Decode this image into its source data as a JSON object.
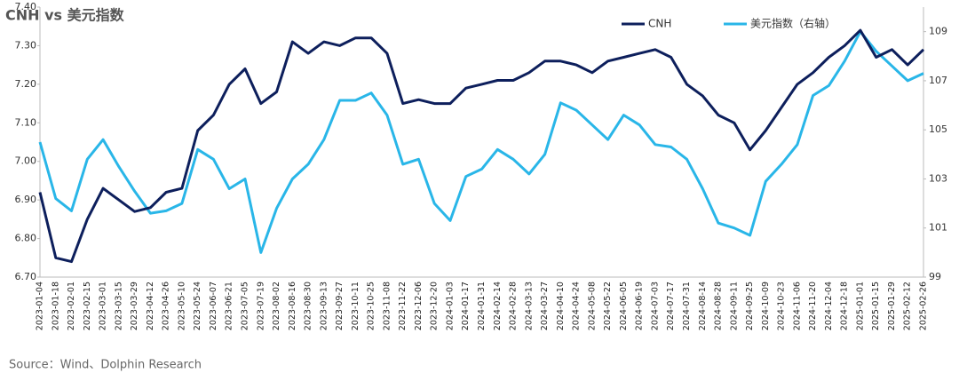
{
  "chart_data": {
    "type": "line",
    "title": "CNH vs 美元指数",
    "source": "Source：Wind、Dolphin Research",
    "categories": [
      "2023-01-04",
      "2023-01-18",
      "2023-02-01",
      "2023-02-15",
      "2023-03-01",
      "2023-03-15",
      "2023-03-29",
      "2023-04-12",
      "2023-04-26",
      "2023-05-10",
      "2023-05-24",
      "2023-06-07",
      "2023-06-21",
      "2023-07-05",
      "2023-07-19",
      "2023-08-02",
      "2023-08-16",
      "2023-08-30",
      "2023-09-13",
      "2023-09-27",
      "2023-10-11",
      "2023-10-25",
      "2023-11-08",
      "2023-11-22",
      "2023-12-06",
      "2023-12-20",
      "2024-01-03",
      "2024-01-17",
      "2024-01-31",
      "2024-02-14",
      "2024-02-28",
      "2024-03-13",
      "2024-03-27",
      "2024-04-10",
      "2024-04-24",
      "2024-05-08",
      "2024-05-22",
      "2024-06-05",
      "2024-06-19",
      "2024-07-03",
      "2024-07-17",
      "2024-07-31",
      "2024-08-14",
      "2024-08-28",
      "2024-09-11",
      "2024-09-25",
      "2024-10-09",
      "2024-10-23",
      "2024-11-06",
      "2024-11-20",
      "2024-12-04",
      "2024-12-18",
      "2025-01-01",
      "2025-01-15",
      "2025-01-29",
      "2025-02-12",
      "2025-02-26"
    ],
    "series": [
      {
        "name": "CNH",
        "color": "#0d1f5c",
        "values": [
          6.92,
          6.75,
          6.74,
          6.85,
          6.93,
          6.9,
          6.87,
          6.88,
          6.92,
          6.93,
          7.08,
          7.12,
          7.2,
          7.24,
          7.15,
          7.18,
          7.31,
          7.28,
          7.31,
          7.3,
          7.32,
          7.32,
          7.28,
          7.15,
          7.16,
          7.15,
          7.15,
          7.19,
          7.2,
          7.21,
          7.21,
          7.23,
          7.26,
          7.26,
          7.25,
          7.23,
          7.26,
          7.27,
          7.28,
          7.29,
          7.27,
          7.2,
          7.17,
          7.12,
          7.1,
          7.03,
          7.08,
          7.14,
          7.2,
          7.23,
          7.27,
          7.3,
          7.34,
          7.27,
          7.29,
          7.25,
          7.29
        ]
      },
      {
        "name": "美元指数（右轴）",
        "color": "#29b6e8",
        "axis": "y2",
        "values": [
          104.5,
          102.2,
          101.7,
          103.8,
          104.6,
          103.5,
          102.5,
          101.6,
          101.7,
          102,
          104.2,
          103.8,
          102.6,
          103,
          100,
          101.8,
          103,
          103.6,
          104.6,
          106.2,
          106.2,
          106.5,
          105.6,
          103.6,
          103.8,
          102,
          101.3,
          103.1,
          103.4,
          104.2,
          103.8,
          103.2,
          104,
          106.1,
          105.8,
          105.2,
          104.6,
          105.6,
          105.2,
          104.4,
          104.3,
          103.8,
          102.6,
          101.2,
          101,
          100.7,
          102.9,
          103.6,
          104.4,
          106.4,
          106.8,
          107.8,
          109,
          108.2,
          107.6,
          107,
          107.3
        ]
      }
    ],
    "ylim": [
      6.7,
      7.4
    ],
    "yticks": [
      {
        "value": 6.7,
        "label": "6.70"
      },
      {
        "value": 6.8,
        "label": "6.80"
      },
      {
        "value": 6.9,
        "label": "6.90"
      },
      {
        "value": 7.0,
        "label": "7.00"
      },
      {
        "value": 7.1,
        "label": "7.10"
      },
      {
        "value": 7.2,
        "label": "7.20"
      },
      {
        "value": 7.3,
        "label": "7.30"
      },
      {
        "value": 7.4,
        "label": "7.40"
      }
    ],
    "y2lim": [
      99,
      110
    ],
    "y2ticks": [
      99,
      101,
      103,
      105,
      107,
      109
    ]
  }
}
